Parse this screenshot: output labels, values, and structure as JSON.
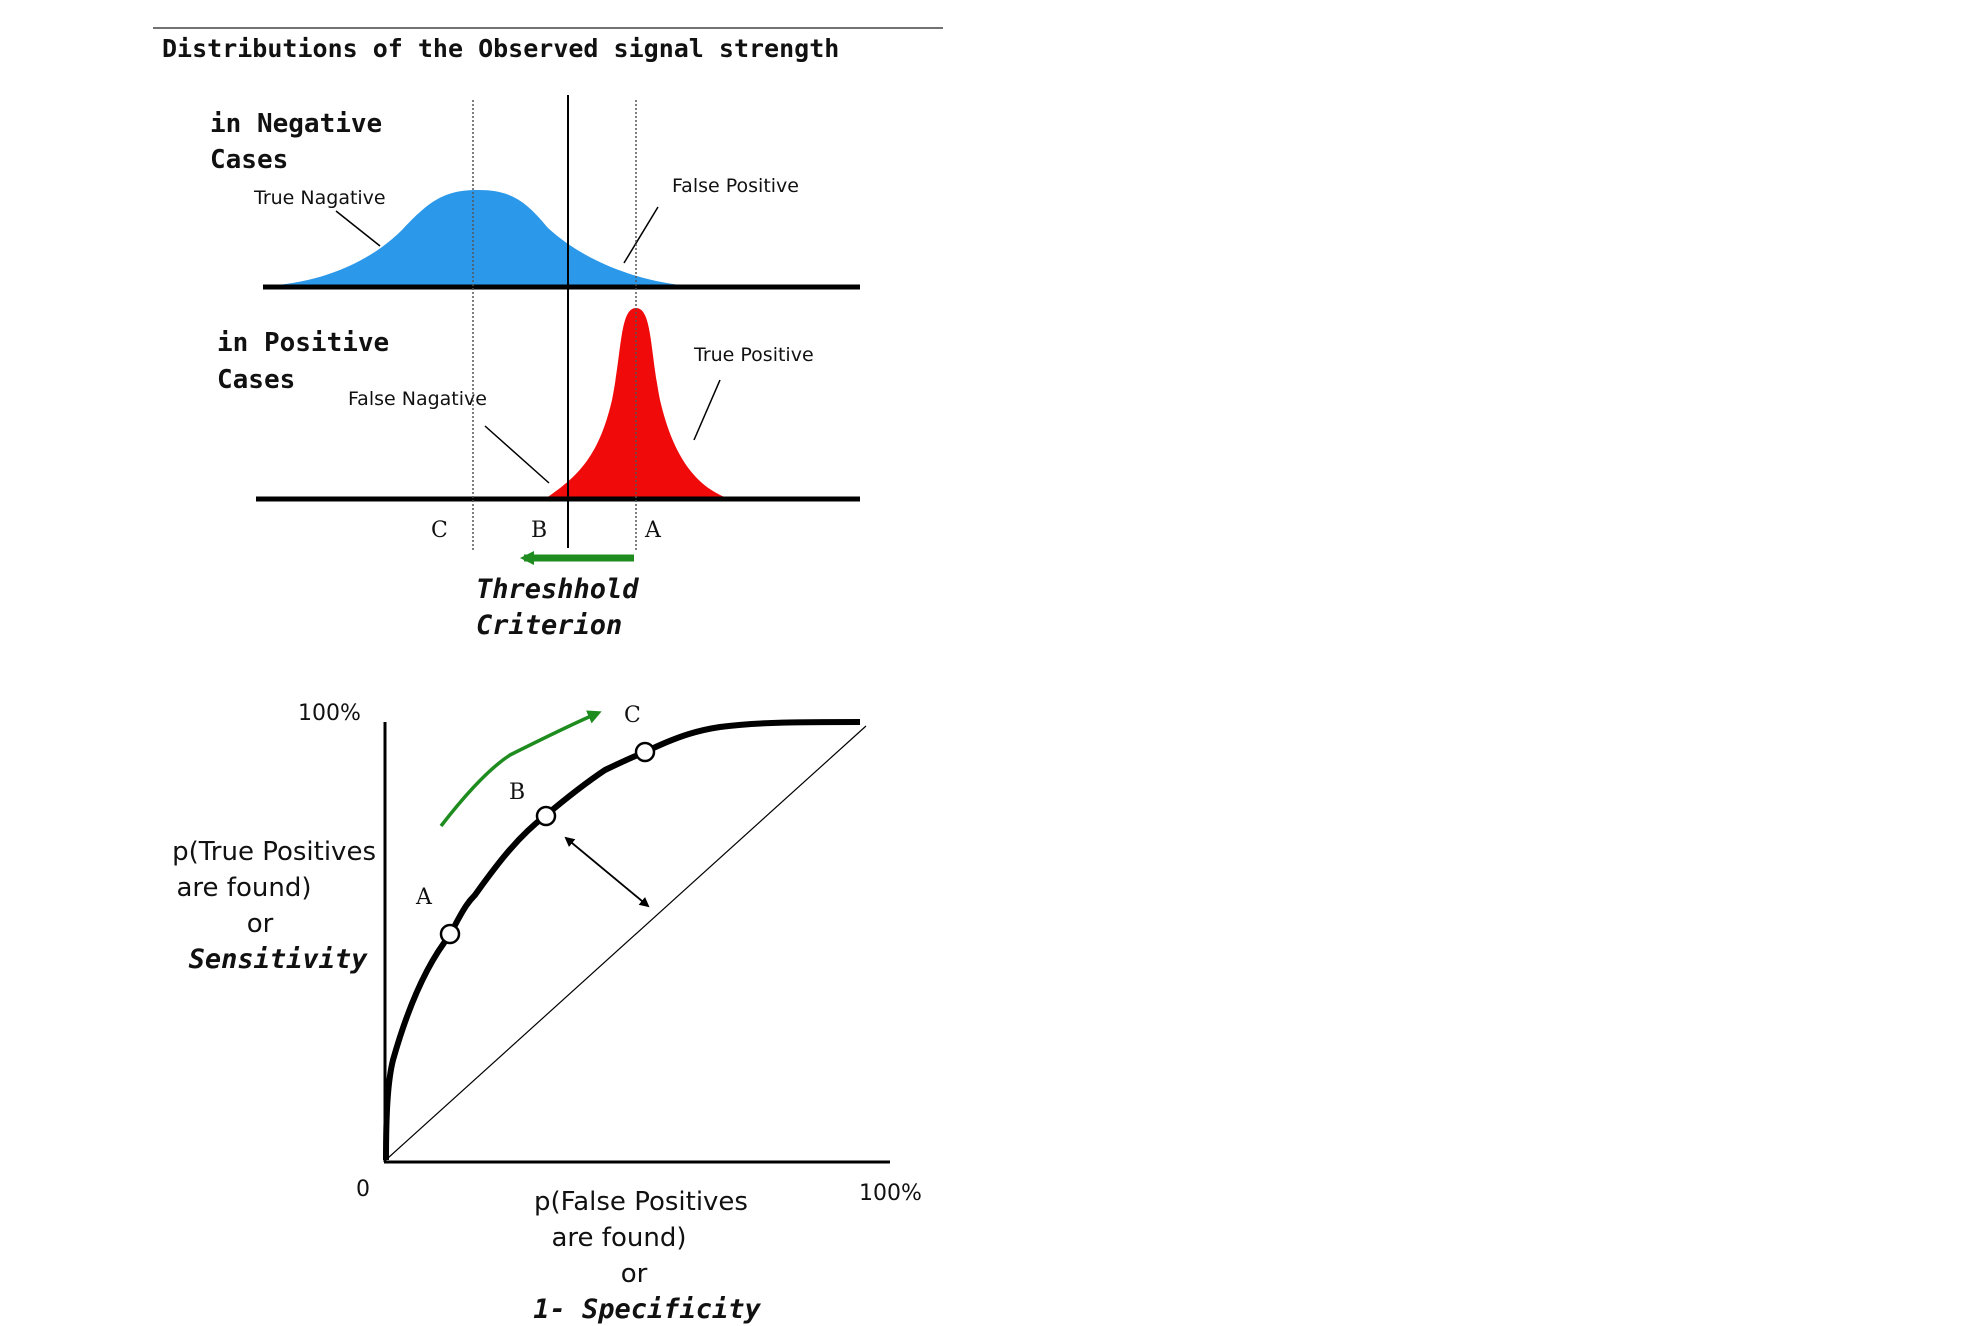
{
  "title": "Distributions of the Observed signal strength",
  "negative": {
    "label_line1": "in Negative",
    "label_line2": "Cases",
    "true_label": "True Nagative",
    "false_label": "False Positive",
    "color": "#2b98ea"
  },
  "positive": {
    "label_line1": "in Positive",
    "label_line2": "Cases",
    "true_label": "True Positive",
    "false_label": "False Nagative",
    "color": "#f00a0a"
  },
  "thresholds": {
    "c": "C",
    "b": "B",
    "a": "A"
  },
  "criterion": {
    "line1": "Threshhold",
    "line2": "Criterion",
    "arrow_color": "#1e8c1e"
  },
  "roc": {
    "y_max_label": "100%",
    "origin_label": "0",
    "x_max_label": "100%",
    "y_label_line1": "p(True Positives",
    "y_label_line2": "are found)",
    "y_label_line3": "or",
    "y_label_line4": "Sensitivity",
    "x_label_line1": "p(False Positives",
    "x_label_line2": "are found)",
    "x_label_line3": "or",
    "x_label_line4": "1- Specificity",
    "point_a": "A",
    "point_b": "B",
    "point_c": "C"
  }
}
